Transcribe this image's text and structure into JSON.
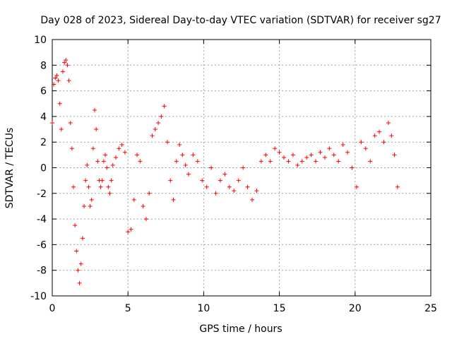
{
  "chart_data": {
    "type": "scatter",
    "title": "Day 028 of 2023, Sidereal Day-to-day VTEC variation (SDTVAR) for receiver sg27",
    "xlabel": "GPS time / hours",
    "ylabel": "SDTVAR / TECUs",
    "xlim": [
      0,
      25
    ],
    "ylim": [
      -10,
      10
    ],
    "xticks": [
      0,
      5,
      10,
      15,
      20,
      25
    ],
    "xtick_labels": [
      "0",
      "5",
      "10",
      "15",
      "20",
      "25"
    ],
    "yticks": [
      -10,
      -8,
      -6,
      -4,
      -2,
      0,
      2,
      4,
      6,
      8,
      10
    ],
    "ytick_labels": [
      "-10",
      "-8",
      "-6",
      "-4",
      "-2",
      "0",
      "2",
      "4",
      "6",
      "8",
      "10"
    ],
    "grid": true,
    "marker": "+",
    "color": "#ff0000",
    "series": [
      {
        "name": "sg27",
        "x": [
          0.0,
          0.1,
          0.2,
          0.3,
          0.4,
          0.5,
          0.6,
          0.7,
          0.8,
          0.9,
          1.0,
          1.1,
          1.2,
          1.3,
          1.4,
          1.5,
          1.6,
          1.7,
          1.8,
          1.9,
          2.0,
          2.1,
          2.2,
          2.3,
          2.4,
          2.5,
          2.6,
          2.7,
          2.8,
          2.9,
          3.0,
          3.1,
          3.2,
          3.3,
          3.4,
          3.5,
          3.6,
          3.7,
          3.8,
          3.9,
          4.0,
          4.2,
          4.4,
          4.6,
          4.8,
          5.0,
          5.2,
          5.4,
          5.6,
          5.8,
          6.0,
          6.2,
          6.4,
          6.6,
          6.8,
          7.0,
          7.2,
          7.4,
          7.6,
          7.8,
          8.0,
          8.2,
          8.4,
          8.6,
          8.8,
          9.0,
          9.3,
          9.6,
          9.9,
          10.2,
          10.5,
          10.8,
          11.1,
          11.4,
          11.7,
          12.0,
          12.3,
          12.6,
          12.9,
          13.2,
          13.5,
          13.8,
          14.1,
          14.4,
          14.7,
          15.0,
          15.3,
          15.6,
          15.9,
          16.2,
          16.5,
          16.8,
          17.1,
          17.4,
          17.7,
          18.0,
          18.3,
          18.6,
          18.9,
          19.2,
          19.5,
          19.8,
          20.1,
          20.4,
          20.7,
          21.0,
          21.3,
          21.6,
          21.9,
          22.2,
          22.4,
          22.6,
          22.8
        ],
        "y": [
          3.5,
          6.5,
          7.0,
          7.2,
          6.8,
          5.0,
          3.0,
          7.5,
          8.2,
          8.4,
          8.0,
          6.8,
          3.5,
          1.5,
          -1.5,
          -4.5,
          -6.5,
          -8.0,
          -9.0,
          -7.5,
          -5.5,
          -3.0,
          -1.0,
          0.2,
          -1.5,
          -3.0,
          -2.5,
          1.5,
          4.5,
          3.0,
          0.5,
          -1.0,
          -1.5,
          -1.0,
          0.5,
          1.0,
          0.0,
          -1.5,
          -2.0,
          -1.0,
          0.2,
          0.8,
          1.5,
          1.8,
          1.2,
          -5.0,
          -4.8,
          -2.5,
          1.0,
          0.5,
          -3.0,
          -4.0,
          -2.0,
          2.5,
          3.0,
          3.5,
          4.0,
          4.8,
          2.0,
          -1.0,
          -2.5,
          0.5,
          1.8,
          1.0,
          0.2,
          -0.5,
          1.0,
          0.5,
          -1.0,
          -1.5,
          0.0,
          -2.0,
          -1.0,
          -0.5,
          -1.5,
          -1.8,
          -1.0,
          0.0,
          -1.5,
          -2.5,
          -1.8,
          0.5,
          1.0,
          0.5,
          1.5,
          1.2,
          0.8,
          0.5,
          1.0,
          0.2,
          0.5,
          0.8,
          1.0,
          0.5,
          1.2,
          0.8,
          1.5,
          1.0,
          0.5,
          1.8,
          1.2,
          0.0,
          -1.5,
          2.0,
          1.5,
          0.5,
          2.5,
          2.8,
          2.0,
          3.5,
          2.5,
          1.0,
          -1.5
        ]
      }
    ]
  }
}
